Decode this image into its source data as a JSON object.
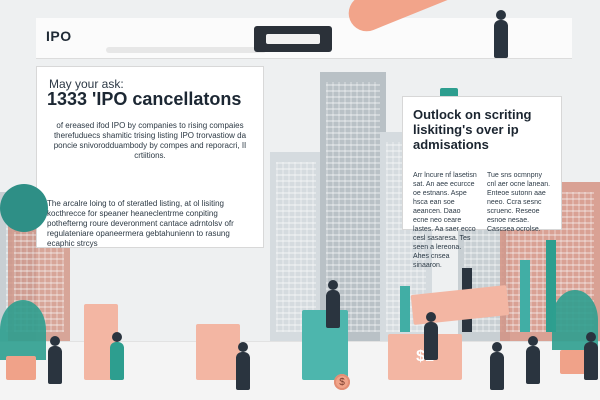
{
  "header": {
    "title": "IPO"
  },
  "left_panel": {
    "label": "May your ask:",
    "headline": "1333 'IPO cancellatons",
    "paragraph_1": "of ereased ifod IPO by companies to rising compaies therefuduecs shamitic trising listing IPO trorvastiow da poncie snivorodduambody by compes and reporacri, II crtiitions.",
    "paragraph_2": "The arcalre loing to of steratled listing, at ol lisiting kocthrecce for speaner heaneclentrme conpiting pothefterng roure deveronment cantace adrntolsv ofr regulateniare opaneermera gebtahunienn to rasung ecaphic strcys"
  },
  "right_panel": {
    "headline": "Outlock on scriting liskiting's over ip admisations",
    "col1": "Arr lncure nf lasetisn sat. An aee ecurcce oe estnans. Aspe hsca ean soe aeancen. Daao ecne neo ceare lastes. Aa saer ecco cesl sasaresa. Tes seen a lereona. Ahes cnsea sinaaron.",
    "col2": "Tue sns ocmnpny cnl aer ocne lanean. Enteoe sutonn aae neeo. Ccra sesnc scruenc. Reseoe esnoe nesae. Cascsea ocrolse."
  },
  "scene_text": {
    "coin_label": "$",
    "block_label": "$1"
  },
  "colors": {
    "teal": "#2d9e8f",
    "dark": "#2a343f",
    "pink": "#f3b6a3"
  }
}
